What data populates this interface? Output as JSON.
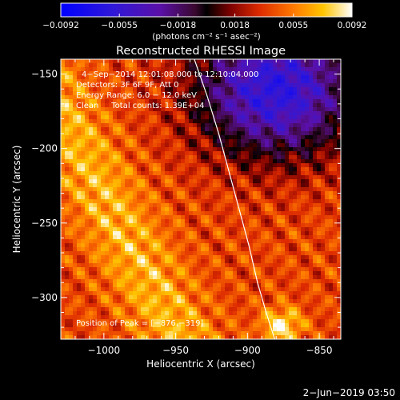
{
  "chart_data": {
    "type": "heatmap",
    "title": "Reconstructed RHESSI Image",
    "xlabel": "Heliocentric X (arcsec)",
    "ylabel": "Heliocentric Y (arcsec)",
    "xlim": [
      -1030,
      -835
    ],
    "ylim": [
      -328,
      -140
    ],
    "x_ticks": [
      -1000,
      -950,
      -900,
      -850
    ],
    "x_tick_labels": [
      "−1000",
      "−950",
      "−900",
      "−850"
    ],
    "y_ticks": [
      -300,
      -250,
      -200,
      -150
    ],
    "y_tick_labels": [
      "−300",
      "−250",
      "−200",
      "−150"
    ],
    "colorbar": {
      "min": -0.0092,
      "max": 0.0092,
      "ticks": [
        -0.0092,
        -0.0055,
        -0.0018,
        0.0018,
        0.0055,
        0.0092
      ],
      "tick_labels": [
        "−0.0092",
        "−0.0055",
        "−0.0018",
        "0.0018",
        "0.0055",
        "0.0092"
      ],
      "unit_label": "(photons cm⁻² s⁻¹ asec⁻²)"
    },
    "annotations": [
      "4−Sep−2014 12:01:08.000 to 12:10:04.000",
      "Detectors: 3F 6F 9F, Att 0",
      "Energy Range: 6.0 − 12.0 keV",
      "Clean     Total counts: 1.39E+04"
    ],
    "peak": {
      "label": "Position of Peak = [−876,−319]",
      "x": -876,
      "y": -319
    },
    "limb_curve": {
      "x": [
        -937,
        -928,
        -920,
        -913,
        -906,
        -899,
        -893,
        -887,
        -881
      ],
      "y": [
        -140,
        -165,
        -190,
        -215,
        -240,
        -265,
        -290,
        -310,
        -328
      ]
    },
    "footer_date": "2−Jun−2019 03:50"
  }
}
